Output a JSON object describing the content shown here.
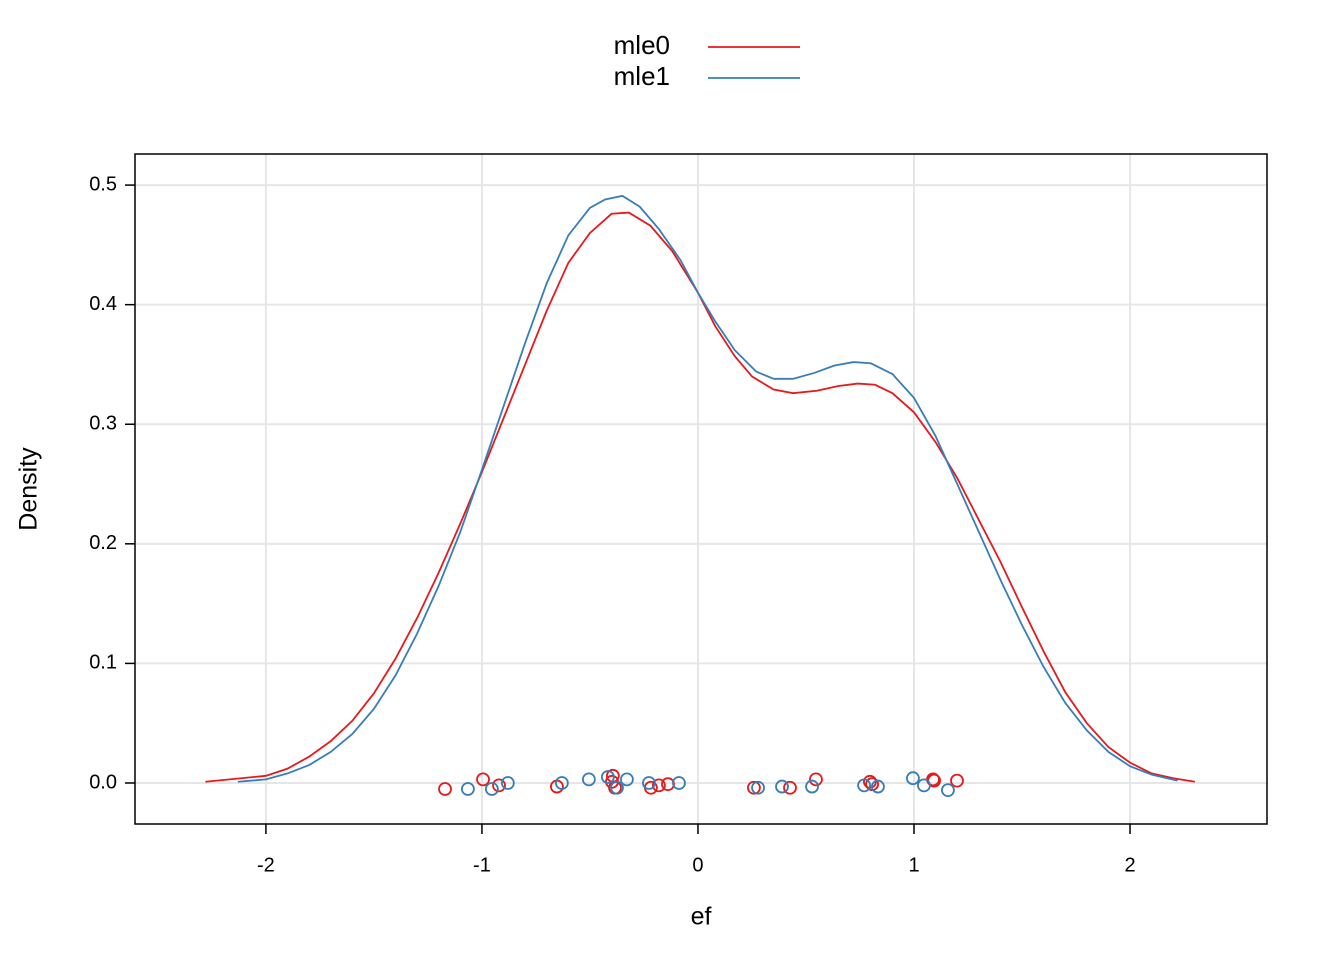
{
  "chart_data": {
    "type": "line",
    "xlabel": "ef",
    "ylabel": "Density",
    "xlim": [
      -2.606,
      2.634
    ],
    "ylim": [
      -0.0343,
      0.526
    ],
    "xticks": [
      -2,
      -1,
      0,
      1,
      2
    ],
    "yticks": [
      {
        "value": 0,
        "label": "0.0"
      },
      0.1,
      0.2,
      0.3,
      0.4,
      0.5
    ],
    "grid": true,
    "legend": "top",
    "series": [
      {
        "name": "mle0",
        "color": "#e41a1c",
        "x": [
          -2.28,
          -2.0,
          -1.9,
          -1.8,
          -1.7,
          -1.6,
          -1.5,
          -1.4,
          -1.3,
          -1.2,
          -1.1,
          -1.0,
          -0.9,
          -0.8,
          -0.7,
          -0.6,
          -0.5,
          -0.4,
          -0.32,
          -0.22,
          -0.12,
          0,
          0.08,
          0.17,
          0.25,
          0.35,
          0.44,
          0.55,
          0.65,
          0.74,
          0.82,
          0.9,
          1.0,
          1.1,
          1.2,
          1.3,
          1.4,
          1.5,
          1.6,
          1.7,
          1.8,
          1.9,
          2.0,
          2.1,
          2.2,
          2.3
        ],
        "values": [
          0.001,
          0.006,
          0.012,
          0.022,
          0.035,
          0.052,
          0.075,
          0.104,
          0.138,
          0.176,
          0.217,
          0.26,
          0.305,
          0.35,
          0.395,
          0.435,
          0.46,
          0.476,
          0.477,
          0.466,
          0.445,
          0.41,
          0.382,
          0.357,
          0.34,
          0.329,
          0.326,
          0.328,
          0.332,
          0.334,
          0.333,
          0.326,
          0.31,
          0.285,
          0.255,
          0.22,
          0.185,
          0.147,
          0.11,
          0.076,
          0.05,
          0.03,
          0.017,
          0.008,
          0.004,
          0.001
        ],
        "points_x": [
          -1.171,
          -0.995,
          -0.921,
          -0.653,
          -0.394,
          -0.398,
          -0.384,
          -0.218,
          -0.181,
          -0.139,
          0.259,
          0.426,
          0.546,
          0.796,
          0.806,
          1.088,
          1.093,
          1.199
        ],
        "points_y": [
          -0.005,
          0.003,
          -0.002,
          -0.003,
          0.006,
          0.001,
          -0.004,
          -0.004,
          -0.002,
          -0.001,
          -0.004,
          -0.004,
          0.003,
          0.001,
          -0.001,
          0.003,
          0.002,
          0.002
        ]
      },
      {
        "name": "mle1",
        "color": "#377eb8",
        "x": [
          -2.13,
          -2.0,
          -1.9,
          -1.8,
          -1.7,
          -1.6,
          -1.5,
          -1.4,
          -1.3,
          -1.2,
          -1.1,
          -1.0,
          -0.9,
          -0.8,
          -0.7,
          -0.6,
          -0.5,
          -0.43,
          -0.35,
          -0.27,
          -0.18,
          -0.08,
          0,
          0.08,
          0.17,
          0.27,
          0.35,
          0.44,
          0.54,
          0.63,
          0.72,
          0.8,
          0.9,
          1.0,
          1.1,
          1.2,
          1.3,
          1.4,
          1.5,
          1.6,
          1.7,
          1.8,
          1.9,
          2.0,
          2.1,
          2.22
        ],
        "values": [
          0.001,
          0.003,
          0.008,
          0.015,
          0.026,
          0.041,
          0.062,
          0.09,
          0.125,
          0.165,
          0.21,
          0.262,
          0.315,
          0.368,
          0.418,
          0.458,
          0.481,
          0.488,
          0.491,
          0.482,
          0.463,
          0.437,
          0.41,
          0.386,
          0.362,
          0.344,
          0.338,
          0.338,
          0.343,
          0.349,
          0.352,
          0.351,
          0.342,
          0.322,
          0.29,
          0.25,
          0.21,
          0.17,
          0.132,
          0.097,
          0.067,
          0.044,
          0.026,
          0.014,
          0.007,
          0.002
        ],
        "points_x": [
          -1.065,
          -0.954,
          -0.88,
          -0.63,
          -0.505,
          -0.417,
          -0.375,
          -0.329,
          -0.227,
          -0.088,
          0.278,
          0.389,
          0.528,
          0.769,
          0.833,
          0.995,
          1.046,
          1.157
        ],
        "points_y": [
          -0.005,
          -0.005,
          0,
          0,
          0.003,
          0.005,
          -0.004,
          0.003,
          0,
          0,
          -0.004,
          -0.003,
          -0.003,
          -0.002,
          -0.003,
          0.004,
          -0.002,
          -0.006
        ]
      }
    ]
  }
}
